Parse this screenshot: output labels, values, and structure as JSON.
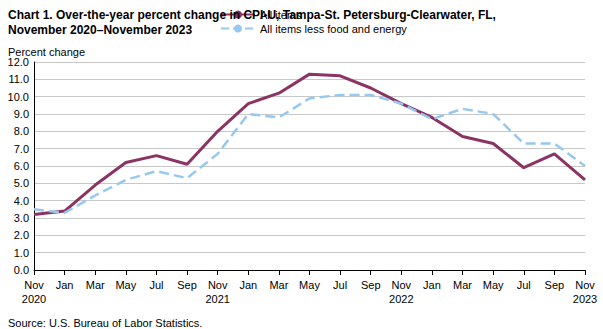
{
  "chart_data": {
    "type": "line",
    "title": "Chart 1. Over-the-year percent change in CPI-U, Tampa-St. Petersburg-Clearwater, FL,\nNovember 2020–November 2023",
    "y_label": "Percent change",
    "source": "Source: U.S. Bureau of Labor Statistics.",
    "categories": [
      "Nov\n2020",
      "Jan",
      "Mar",
      "May",
      "Jul",
      "Sep",
      "Nov\n2021",
      "Jan",
      "Mar",
      "May",
      "Jul",
      "Sep",
      "Nov\n2022",
      "Jan",
      "Mar",
      "May",
      "Jul",
      "Sep",
      "Nov\n2023"
    ],
    "series": [
      {
        "name": "All items",
        "color": "#8b3463",
        "line_style": "solid",
        "values": [
          3.2,
          3.4,
          4.9,
          6.2,
          6.6,
          6.1,
          8.0,
          9.6,
          10.2,
          11.3,
          11.2,
          10.5,
          9.6,
          8.8,
          7.7,
          7.3,
          5.9,
          6.7,
          5.2
        ]
      },
      {
        "name": "All items less food and energy",
        "color": "#96c8f0",
        "line_style": "dashed",
        "values": [
          3.5,
          3.3,
          4.3,
          5.2,
          5.7,
          5.3,
          6.7,
          9.0,
          8.8,
          9.9,
          10.1,
          10.1,
          9.6,
          8.7,
          9.3,
          9.0,
          7.3,
          7.3,
          6.0
        ]
      }
    ],
    "ylim": [
      0,
      12
    ],
    "yticks": [
      {
        "value": 0,
        "label": "0.0"
      },
      {
        "value": 1,
        "label": "1.0"
      },
      {
        "value": 2,
        "label": "2.0"
      },
      {
        "value": 3,
        "label": "3.0"
      },
      {
        "value": 4,
        "label": "4.0"
      },
      {
        "value": 5,
        "label": "5.0"
      },
      {
        "value": 6,
        "label": "6.0"
      },
      {
        "value": 7,
        "label": "7.0"
      },
      {
        "value": 8,
        "label": "8.0"
      },
      {
        "value": 9,
        "label": "9.0"
      },
      {
        "value": 10,
        "label": "10.0"
      },
      {
        "value": 11,
        "label": "11.0"
      },
      {
        "value": 12,
        "label": "12.0"
      }
    ],
    "grid": true,
    "legend": "top"
  }
}
